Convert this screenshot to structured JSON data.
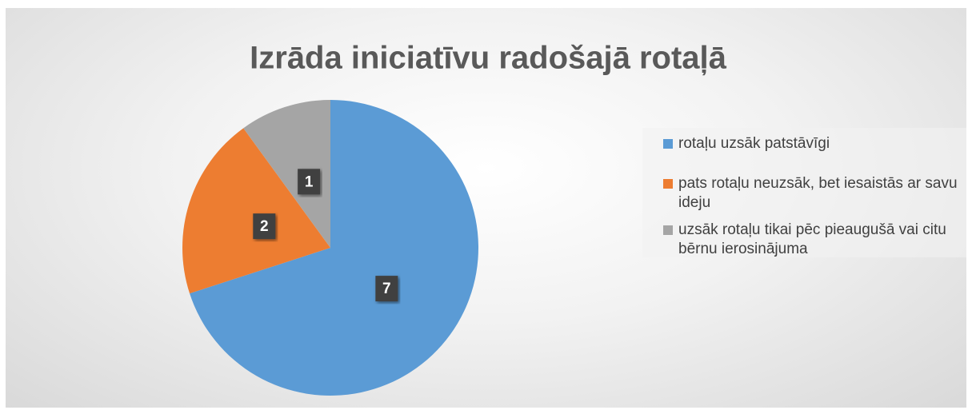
{
  "chart_data": {
    "type": "pie",
    "title": "Izrāda iniciatīvu radošajā rotaļā",
    "categories": [
      "rotaļu uzsāk patstāvīgi",
      "pats rotaļu neuzsāk, bet iesaistās ar savu ideju",
      "uzsāk rotaļu tikai pēc pieaugušā vai citu bērnu ierosinājuma"
    ],
    "values": [
      7,
      2,
      1
    ],
    "colors": [
      "#5b9bd5",
      "#ed7d31",
      "#a5a5a5"
    ],
    "legend": "right"
  }
}
